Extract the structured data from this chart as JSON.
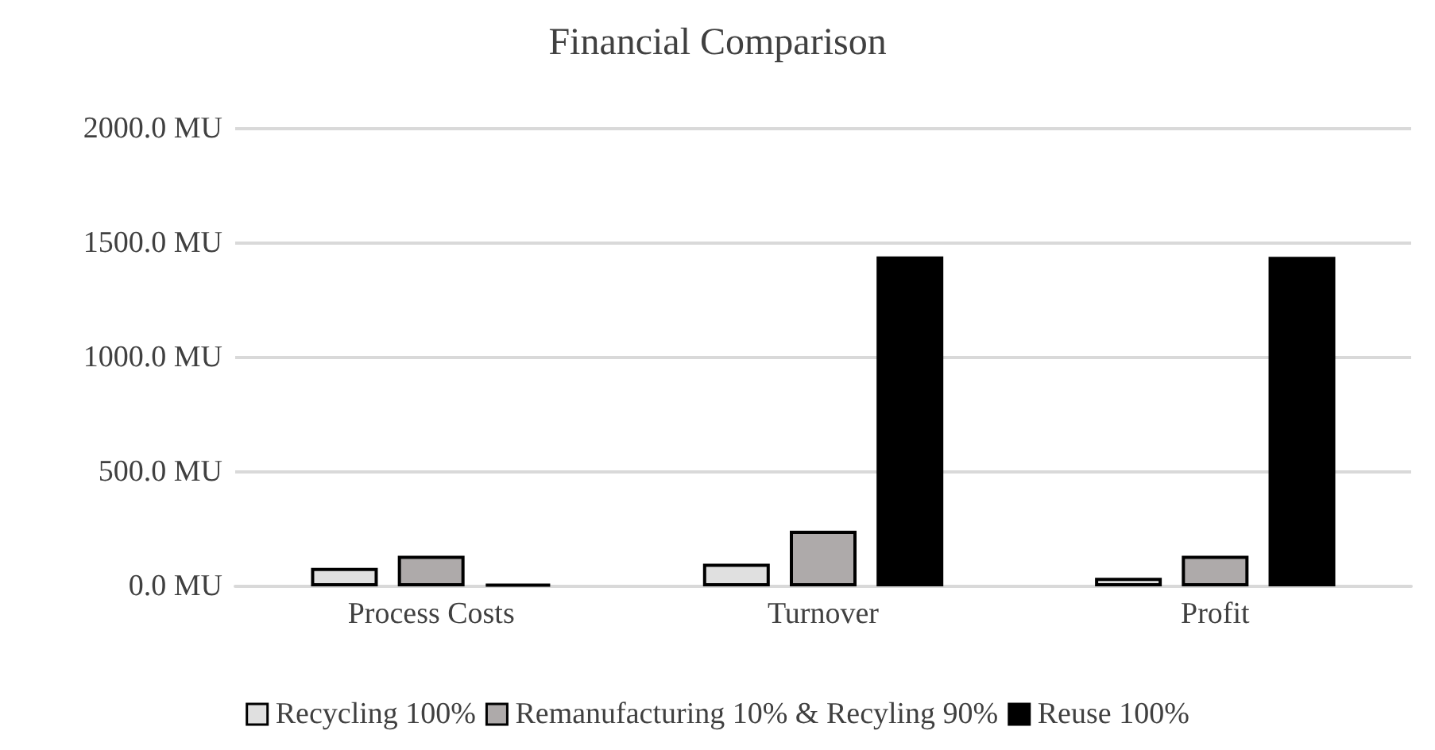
{
  "chart_data": {
    "type": "bar",
    "title": "Financial Comparison",
    "categories": [
      "Process Costs",
      "Turnover",
      "Profit"
    ],
    "series": [
      {
        "name": "Recycling 100%",
        "color": "#e0e0e0",
        "values": [
          81,
          99,
          37
        ]
      },
      {
        "name": "Remanufacturing 10% & Recyling 90%",
        "color": "#aeaaaa",
        "values": [
          134,
          243,
          134
        ]
      },
      {
        "name": "Reuse 100%",
        "color": "#000000",
        "values": [
          10,
          1442,
          1440
        ]
      }
    ],
    "ylim": [
      0,
      2000
    ],
    "yticks": [
      {
        "value": 0,
        "label": "0.0 MU"
      },
      {
        "value": 500,
        "label": "500.0 MU"
      },
      {
        "value": 1000,
        "label": "1000.0 MU"
      },
      {
        "value": 1500,
        "label": "1500.0 MU"
      },
      {
        "value": 2000,
        "label": "2000.0 MU"
      }
    ],
    "grid": "y",
    "legend": "bottom"
  }
}
